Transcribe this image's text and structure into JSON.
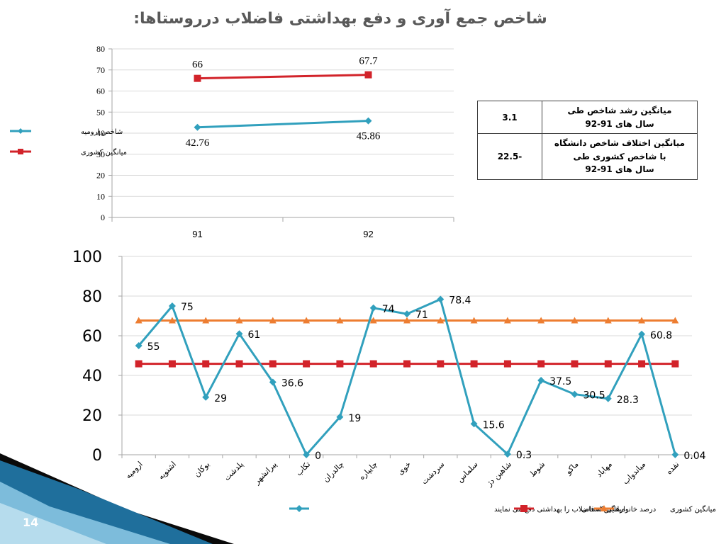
{
  "slide": {
    "title": "شاخص جمع آوری و دفع بهداشتی فاضلاب درروستاها:",
    "page_number": "14"
  },
  "info_table": {
    "rows": [
      {
        "value": "3.1",
        "label_lines": [
          "میانگین رشد شاخص طی",
          "سال های 91-92"
        ]
      },
      {
        "value": "22.5-",
        "label_lines": [
          "میانگین اختلاف شاخص دانشگاه",
          "با شاخص کشوری طی",
          "سال های 91-92"
        ]
      }
    ]
  },
  "colors": {
    "teal": "#31a0bd",
    "red": "#d2232a",
    "orange": "#ed7d31",
    "axis": "#a6a6a6",
    "grid": "#d9d9d9",
    "decor_dark": "#0a0a0a",
    "decor_blue": "#1f6f9c",
    "decor_light": "#8ecae6"
  },
  "chart_data": [
    {
      "type": "line",
      "title": "",
      "xlabel": "",
      "ylabel": "",
      "categories": [
        "91",
        "92"
      ],
      "ylim": [
        0,
        80
      ],
      "yticks": [
        "0",
        "10",
        "20",
        "30",
        "40",
        "50",
        "60",
        "70",
        "80"
      ],
      "grid": true,
      "legend_position": "left",
      "series": [
        {
          "name": "شاخص ارومیه",
          "values": [
            42.76,
            45.86
          ],
          "labels": [
            "42.76",
            "45.86"
          ],
          "color": "#31a0bd",
          "marker": "diamond"
        },
        {
          "name": "میانگین کشوری",
          "values": [
            66,
            67.7
          ],
          "labels": [
            "66",
            "67.7"
          ],
          "color": "#d2232a",
          "marker": "square"
        }
      ]
    },
    {
      "type": "line",
      "title": "",
      "xlabel": "",
      "ylabel": "",
      "categories": [
        "ارومیه",
        "اشنویه",
        "بوکان",
        "پلدشت",
        "پیرانشهر",
        "تکاب",
        "چالدران",
        "چایپاره",
        "خوی",
        "سردشت",
        "سلماس",
        "شاهین دژ",
        "شوط",
        "ماکو",
        "مهاباد",
        "میاندواب",
        "نقده"
      ],
      "ylim": [
        0,
        100
      ],
      "yticks": [
        "0",
        "20",
        "40",
        "60",
        "80",
        "100"
      ],
      "grid": true,
      "legend_position": "bottom",
      "series": [
        {
          "name": "درصد خانوارهایی که فاضلاب را بهداشتی دفع می نمایند",
          "values": [
            55,
            75,
            29,
            61,
            36.6,
            0,
            19,
            74,
            71,
            78.4,
            15.6,
            0.3,
            37.5,
            30.5,
            28.3,
            60.8,
            0.04
          ],
          "labels": [
            "55",
            "75",
            "29",
            "61",
            "36.6",
            "0",
            "19",
            "74",
            "71",
            "78.4",
            "15.6",
            "0.3",
            "37.5",
            "30.5",
            "28.3",
            "60.8",
            "0.04"
          ],
          "color": "#31a0bd",
          "marker": "diamond"
        },
        {
          "name": "میانگین استانی",
          "values": [
            45.86,
            45.86,
            45.86,
            45.86,
            45.86,
            45.86,
            45.86,
            45.86,
            45.86,
            45.86,
            45.86,
            45.86,
            45.86,
            45.86,
            45.86,
            45.86,
            45.86
          ],
          "color": "#d2232a",
          "marker": "square"
        },
        {
          "name": "میانگین کشوری",
          "values": [
            67.7,
            67.7,
            67.7,
            67.7,
            67.7,
            67.7,
            67.7,
            67.7,
            67.7,
            67.7,
            67.7,
            67.7,
            67.7,
            67.7,
            67.7,
            67.7,
            67.7
          ],
          "color": "#ed7d31",
          "marker": "triangle"
        }
      ]
    }
  ]
}
